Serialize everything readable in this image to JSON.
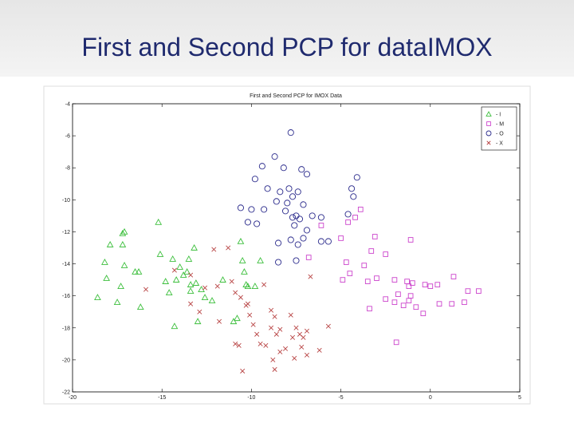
{
  "slide": {
    "title": "First and Second PCP for dataIMOX"
  },
  "chart_data": {
    "type": "scatter",
    "title": "First and Second PCP for IMOX Data",
    "xlim": [
      -20,
      5
    ],
    "xticks": [
      -20,
      -15,
      -10,
      -5,
      0,
      5
    ],
    "ylim": [
      -22,
      -4
    ],
    "yticks": [
      -22,
      -20,
      -18,
      -16,
      -14,
      -12,
      -10,
      -8,
      -6,
      -4
    ],
    "legend": "upper right",
    "series": [
      {
        "name": "- I",
        "color": "#3cbf3c",
        "marker": "triangle",
        "x": [
          -18.6,
          -18.2,
          -18.1,
          -17.9,
          -17.5,
          -17.2,
          -17.2,
          -17.3,
          -17.1,
          -17.1,
          -16.5,
          -16.3,
          -16.2,
          -15.2,
          -15.1,
          -14.8,
          -14.6,
          -14.4,
          -14.3,
          -14.2,
          -14.0,
          -13.8,
          -13.6,
          -13.5,
          -13.4,
          -13.4,
          -13.2,
          -13.1,
          -13.0,
          -12.8,
          -12.6,
          -12.2,
          -11.6,
          -11.0,
          -10.8,
          -10.6,
          -10.5,
          -10.4,
          -10.3,
          -10.2,
          -9.8,
          -9.5
        ],
        "values": [
          -16.1,
          -13.9,
          -14.9,
          -12.8,
          -16.4,
          -12.1,
          -12.8,
          -15.4,
          -14.1,
          -12.0,
          -14.5,
          -14.5,
          -16.7,
          -11.4,
          -13.4,
          -15.1,
          -15.8,
          -13.7,
          -17.9,
          -15.0,
          -14.2,
          -14.7,
          -14.5,
          -13.7,
          -15.3,
          -15.7,
          -13.0,
          -15.2,
          -17.6,
          -15.6,
          -16.1,
          -16.3,
          -15.0,
          -17.6,
          -17.4,
          -12.6,
          -13.8,
          -14.5,
          -15.3,
          -15.4,
          -15.4,
          -13.8
        ]
      },
      {
        "name": "- M",
        "color": "#cc44cc",
        "marker": "square",
        "x": [
          -3.9,
          -4.2,
          -4.6,
          -5.0,
          -6.1,
          -6.8,
          -4.7,
          -4.9,
          -4.5,
          -3.5,
          -3.7,
          -3.1,
          -3.3,
          -2.5,
          -3.0,
          -2.0,
          -3.4,
          -2.5,
          -2.0,
          -1.8,
          -1.5,
          -1.3,
          -1.2,
          -1.1,
          -1.0,
          -1.2,
          -0.8,
          -0.4,
          -0.3,
          0.0,
          0.4,
          0.5,
          1.2,
          1.3,
          1.9,
          2.1,
          2.7,
          -1.1,
          -1.9
        ],
        "values": [
          -10.6,
          -11.1,
          -11.4,
          -12.4,
          -11.6,
          -13.6,
          -13.9,
          -15.0,
          -14.6,
          -15.1,
          -14.1,
          -12.3,
          -13.2,
          -13.4,
          -14.9,
          -15.0,
          -16.8,
          -16.2,
          -16.4,
          -15.9,
          -16.6,
          -15.1,
          -15.4,
          -16.0,
          -15.2,
          -16.3,
          -16.7,
          -17.1,
          -15.3,
          -15.4,
          -15.3,
          -16.5,
          -16.5,
          -14.8,
          -16.4,
          -15.7,
          -15.7,
          -12.5,
          -18.9
        ]
      },
      {
        "name": "- O",
        "color": "#2b2b8c",
        "marker": "circle",
        "x": [
          -7.8,
          -8.7,
          -9.4,
          -8.2,
          -7.2,
          -6.9,
          -9.8,
          -9.1,
          -8.4,
          -7.9,
          -7.4,
          -8.6,
          -8.0,
          -7.7,
          -7.1,
          -10.6,
          -10.0,
          -9.3,
          -8.1,
          -7.5,
          -6.6,
          -6.1,
          -4.6,
          -4.4,
          -4.3,
          -4.1,
          -10.2,
          -9.7,
          -7.7,
          -7.3,
          -7.6,
          -6.9,
          -7.1,
          -8.5,
          -7.8,
          -7.4,
          -6.1,
          -5.7,
          -8.5,
          -7.5
        ],
        "values": [
          -5.8,
          -7.3,
          -7.9,
          -8.0,
          -8.1,
          -8.4,
          -8.7,
          -9.3,
          -9.5,
          -9.3,
          -9.5,
          -10.1,
          -10.2,
          -9.8,
          -10.3,
          -10.5,
          -10.6,
          -10.6,
          -10.7,
          -11.0,
          -11.0,
          -11.1,
          -10.9,
          -9.3,
          -9.8,
          -8.6,
          -11.4,
          -11.5,
          -11.1,
          -11.2,
          -11.6,
          -11.9,
          -12.4,
          -12.7,
          -12.5,
          -12.8,
          -12.6,
          -12.6,
          -13.9,
          -13.8
        ]
      },
      {
        "name": "- X",
        "color": "#b84444",
        "marker": "x",
        "x": [
          -15.9,
          -14.3,
          -13.4,
          -13.4,
          -12.9,
          -12.6,
          -12.1,
          -11.9,
          -11.8,
          -11.3,
          -11.1,
          -10.9,
          -10.6,
          -10.3,
          -10.1,
          -9.9,
          -10.9,
          -10.7,
          -10.5,
          -9.7,
          -9.5,
          -9.2,
          -8.9,
          -8.7,
          -8.6,
          -8.4,
          -8.8,
          -8.7,
          -8.1,
          -8.4,
          -7.8,
          -7.7,
          -7.6,
          -7.5,
          -7.3,
          -7.1,
          -7.2,
          -6.9,
          -6.9,
          -6.2,
          -5.7,
          -6.7,
          -9.3,
          -8.9,
          -10.2
        ],
        "values": [
          -15.6,
          -14.4,
          -14.7,
          -16.5,
          -17.0,
          -15.5,
          -13.1,
          -15.4,
          -17.6,
          -13.0,
          -15.1,
          -15.8,
          -16.1,
          -16.6,
          -17.2,
          -17.8,
          -19.0,
          -19.1,
          -20.7,
          -18.4,
          -19.0,
          -19.1,
          -18.0,
          -17.3,
          -18.4,
          -19.5,
          -20.0,
          -20.6,
          -19.3,
          -18.1,
          -17.2,
          -18.6,
          -19.9,
          -18.0,
          -18.4,
          -18.6,
          -19.2,
          -18.2,
          -19.7,
          -19.4,
          -17.9,
          -14.8,
          -15.3,
          -16.9,
          -16.5
        ]
      }
    ]
  }
}
